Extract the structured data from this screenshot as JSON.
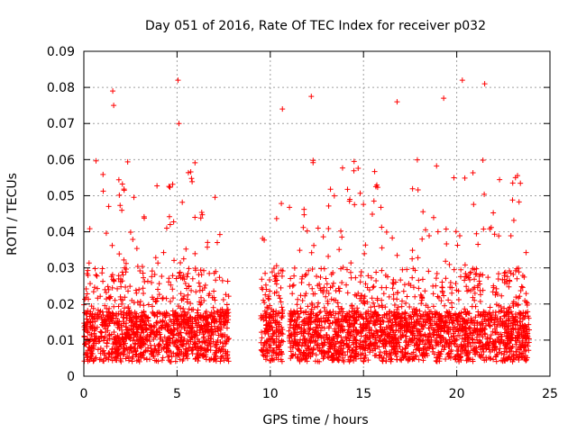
{
  "chart_data": {
    "type": "scatter",
    "title": "Day 051 of 2016, Rate Of TEC Index for receiver p032",
    "xlabel": "GPS time / hours",
    "ylabel": "ROTI / TECUs",
    "xlim": [
      0,
      24
    ],
    "ylim": [
      0,
      0.09
    ],
    "x_ticks": [
      0,
      5,
      10,
      15,
      20,
      25
    ],
    "x_tick_labels": [
      "0",
      "5",
      "10",
      "15",
      "20",
      "25"
    ],
    "y_ticks": [
      0,
      0.01,
      0.02,
      0.03,
      0.04,
      0.05,
      0.06,
      0.07,
      0.08,
      0.09
    ],
    "y_tick_labels": [
      "0",
      "0.01",
      "0.02",
      "0.03",
      "0.04",
      "0.05",
      "0.06",
      "0.07",
      "0.08",
      "0.09"
    ],
    "grid": true,
    "marker": "+",
    "marker_color": "#ff0000",
    "data_coverage": [
      [
        0.0,
        7.8
      ],
      [
        9.5,
        10.7
      ],
      [
        11.0,
        23.9
      ]
    ],
    "notable_points": [
      {
        "x": 1.55,
        "y": 0.079
      },
      {
        "x": 1.6,
        "y": 0.075
      },
      {
        "x": 5.05,
        "y": 0.082
      },
      {
        "x": 5.1,
        "y": 0.07
      },
      {
        "x": 10.65,
        "y": 0.074
      },
      {
        "x": 12.2,
        "y": 0.0775
      },
      {
        "x": 16.8,
        "y": 0.076
      },
      {
        "x": 19.3,
        "y": 0.077
      },
      {
        "x": 20.3,
        "y": 0.082
      },
      {
        "x": 21.5,
        "y": 0.081
      }
    ]
  }
}
